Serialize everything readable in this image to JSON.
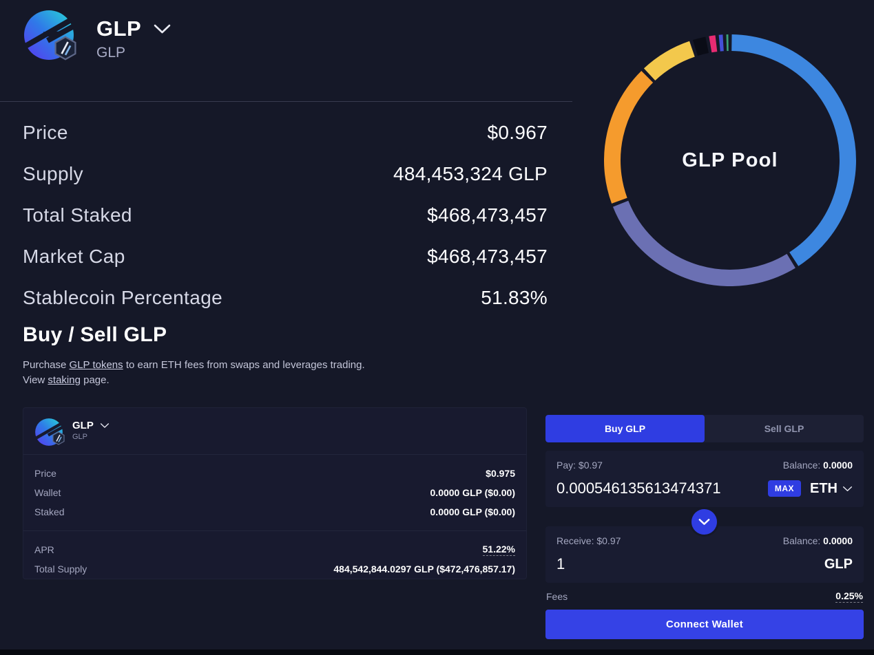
{
  "header": {
    "title": "GLP",
    "subtitle": "GLP"
  },
  "stats": {
    "rows": [
      {
        "label": "Price",
        "value": "$0.967"
      },
      {
        "label": "Supply",
        "value": "484,453,324 GLP"
      },
      {
        "label": "Total Staked",
        "value": "$468,473,457"
      },
      {
        "label": "Market Cap",
        "value": "$468,473,457"
      },
      {
        "label": "Stablecoin Percentage",
        "value": "51.83%"
      }
    ]
  },
  "chart_data": {
    "type": "pie",
    "variant": "donut",
    "center_label": "GLP Pool",
    "legend": "none",
    "start_angle_deg_from_top": 0,
    "segments": [
      {
        "name": "blue",
        "color": "#3d87e0",
        "percent": 41.1
      },
      {
        "name": "slate-purple",
        "color": "#6b70b3",
        "percent": 28.1
      },
      {
        "name": "orange",
        "color": "#f59b2d",
        "percent": 18.6
      },
      {
        "name": "gold",
        "color": "#f3c84c",
        "percent": 7.2
      },
      {
        "name": "black",
        "color": "#0a0c16",
        "percent": 2.1
      },
      {
        "name": "pink",
        "color": "#e82b72",
        "percent": 1.25
      },
      {
        "name": "indigo",
        "color": "#4450d8",
        "percent": 0.95
      },
      {
        "name": "green",
        "color": "#3aa178",
        "percent": 0.7
      }
    ]
  },
  "buy_sell": {
    "heading": "Buy / Sell GLP",
    "desc": {
      "line1": [
        "Purchase ",
        "GLP tokens",
        " to earn ETH fees from swaps and leverages trading."
      ],
      "line2": [
        "View ",
        "staking",
        " page."
      ]
    }
  },
  "token_card": {
    "name": "GLP",
    "symbol": "GLP",
    "rows1": [
      {
        "label": "Price",
        "value": "$0.975"
      },
      {
        "label": "Wallet",
        "value": "0.0000 GLP ($0.00)"
      },
      {
        "label": "Staked",
        "value": "0.0000 GLP ($0.00)"
      }
    ],
    "rows2": [
      {
        "label": "APR",
        "value": "51.22%"
      },
      {
        "label": "Total Supply",
        "value": "484,542,844.0297 GLP ($472,476,857.17)"
      }
    ]
  },
  "swap": {
    "tabs": [
      {
        "label": "Buy GLP"
      },
      {
        "label": "Sell GLP"
      }
    ],
    "pay": {
      "label": "Pay: $0.97",
      "balance_label": "Balance:",
      "balance_value": "0.0000",
      "amount": "0.000546135613474371",
      "max_label": "MAX",
      "token": "ETH"
    },
    "receive": {
      "label": "Receive: $0.97",
      "balance_label": "Balance:",
      "balance_value": "0.0000",
      "amount": "1",
      "token": "GLP"
    },
    "fees_label": "Fees",
    "fees_value": "0.25%",
    "connect_label": "Connect Wallet"
  },
  "colors": {
    "accent_blue": "#2f3de2",
    "connect_blue": "#3542e6",
    "donut_blue": "#3d87e0"
  }
}
